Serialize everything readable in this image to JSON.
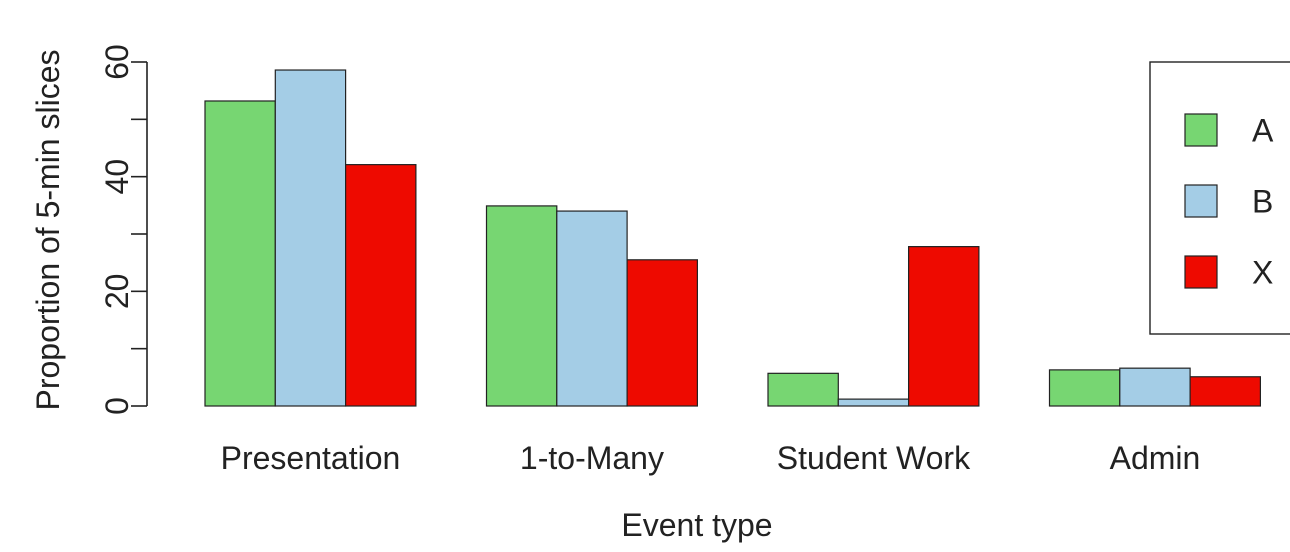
{
  "chart_data": {
    "type": "bar",
    "categories": [
      "Presentation",
      "1-to-Many",
      "Student Work",
      "Admin"
    ],
    "series": [
      {
        "name": "A",
        "color": "#77d672",
        "values": [
          53.2,
          34.9,
          5.7,
          6.3
        ]
      },
      {
        "name": "B",
        "color": "#a4cde6",
        "values": [
          58.6,
          34.0,
          1.2,
          6.6
        ]
      },
      {
        "name": "X",
        "color": "#ee0a00",
        "values": [
          42.1,
          25.5,
          27.8,
          5.1
        ]
      }
    ],
    "xlabel": "Event type",
    "ylabel": "Proportion of 5-min slices",
    "ylim": [
      0,
      60
    ],
    "yticks": [
      0,
      10,
      20,
      30,
      40,
      50,
      60
    ],
    "ytick_labels": [
      "0",
      "",
      "20",
      "",
      "40",
      "",
      "60"
    ],
    "grid": false,
    "legend": "top-right"
  }
}
